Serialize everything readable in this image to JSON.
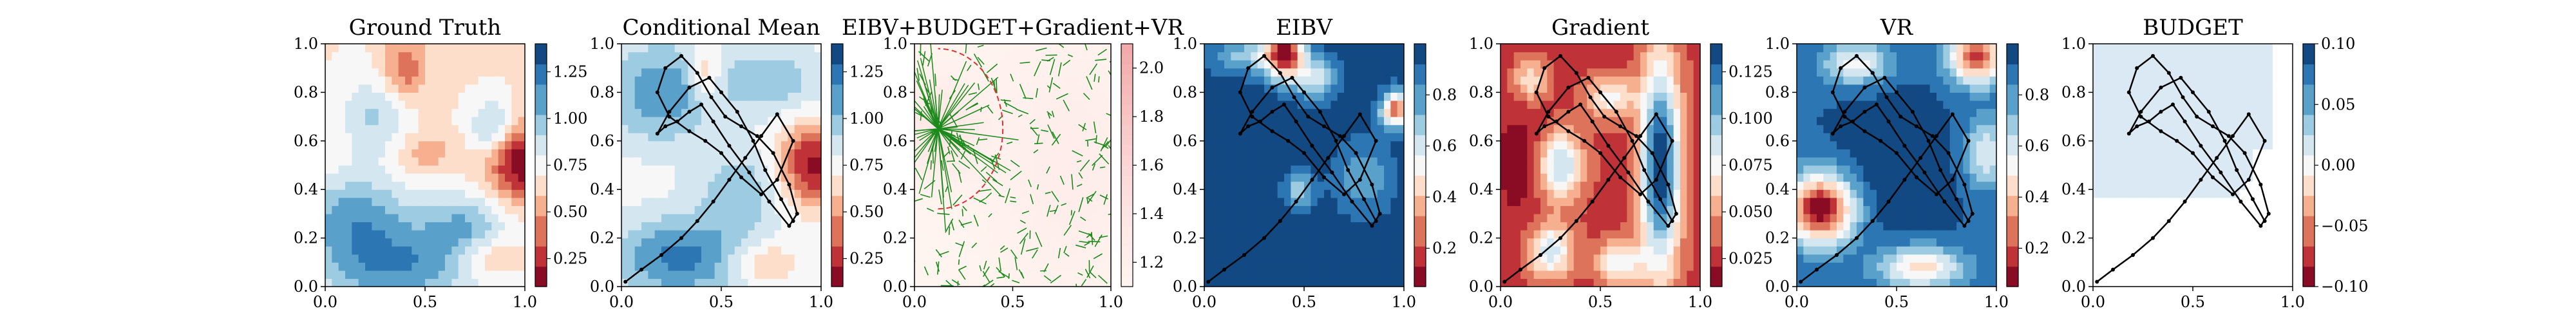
{
  "chart_data": [
    {
      "type": "heatmap",
      "title": "Ground Truth",
      "xlim": [
        0,
        1
      ],
      "ylim": [
        0,
        1
      ],
      "xticks": [
        "0.0",
        "0.5",
        "1.0"
      ],
      "yticks": [
        "0.0",
        "0.2",
        "0.4",
        "0.6",
        "0.8",
        "1.0"
      ],
      "colormap": "RdBu",
      "colorbar": {
        "range": [
          0.1,
          1.4
        ],
        "ticks": [
          "0.25",
          "0.50",
          "0.75",
          "1.00",
          "1.25"
        ]
      },
      "has_path": false
    },
    {
      "type": "heatmap",
      "title": "Conditional Mean",
      "xlim": [
        0,
        1
      ],
      "ylim": [
        0,
        1
      ],
      "xticks": [
        "0.0",
        "0.5",
        "1.0"
      ],
      "yticks": [
        "0.0",
        "0.2",
        "0.4",
        "0.6",
        "0.8",
        "1.0"
      ],
      "colormap": "RdBu",
      "colorbar": {
        "range": [
          0.1,
          1.4
        ],
        "ticks": [
          "0.25",
          "0.50",
          "0.75",
          "1.00",
          "1.25"
        ]
      },
      "has_path": true
    },
    {
      "type": "heatmap",
      "title": "EIBV+BUDGET+Gradient+VR",
      "xlim": [
        0,
        1
      ],
      "ylim": [
        0,
        1
      ],
      "xticks": [
        "0.0",
        "0.5",
        "1.0"
      ],
      "yticks": [
        "0.0",
        "0.2",
        "0.4",
        "0.6",
        "0.8",
        "1.0"
      ],
      "colormap": "Reds",
      "colorbar": {
        "range": [
          1.1,
          2.1
        ],
        "ticks": [
          "1.2",
          "1.4",
          "1.6",
          "1.8",
          "2.0"
        ]
      },
      "has_path": false
    },
    {
      "type": "heatmap",
      "title": "EIBV",
      "xlim": [
        0,
        1
      ],
      "ylim": [
        0,
        1
      ],
      "xticks": [
        "0.0",
        "0.5",
        "1.0"
      ],
      "yticks": [
        "0.0",
        "0.2",
        "0.4",
        "0.6",
        "0.8",
        "1.0"
      ],
      "colormap": "RdBu",
      "colorbar": {
        "range": [
          0.05,
          1.0
        ],
        "ticks": [
          "0.2",
          "0.4",
          "0.6",
          "0.8"
        ]
      },
      "has_path": true
    },
    {
      "type": "heatmap",
      "title": "Gradient",
      "xlim": [
        0,
        1
      ],
      "ylim": [
        0,
        1
      ],
      "xticks": [
        "0.0",
        "0.5",
        "1.0"
      ],
      "yticks": [
        "0.0",
        "0.2",
        "0.4",
        "0.6",
        "0.8",
        "1.0"
      ],
      "colormap": "RdBu",
      "colorbar": {
        "range": [
          0.01,
          0.14
        ],
        "ticks": [
          "0.025",
          "0.050",
          "0.075",
          "0.100",
          "0.125"
        ]
      },
      "has_path": true
    },
    {
      "type": "heatmap",
      "title": "VR",
      "xlim": [
        0,
        1
      ],
      "ylim": [
        0,
        1
      ],
      "xticks": [
        "0.0",
        "0.5",
        "1.0"
      ],
      "yticks": [
        "0.0",
        "0.2",
        "0.4",
        "0.6",
        "0.8",
        "1.0"
      ],
      "colormap": "RdBu",
      "colorbar": {
        "range": [
          0.05,
          1.0
        ],
        "ticks": [
          "0.2",
          "0.4",
          "0.6",
          "0.8"
        ]
      },
      "has_path": true
    },
    {
      "type": "heatmap",
      "title": "BUDGET",
      "xlim": [
        0,
        1
      ],
      "ylim": [
        0,
        1
      ],
      "xticks": [
        "0.0",
        "0.5",
        "1.0"
      ],
      "yticks": [
        "0.0",
        "0.2",
        "0.4",
        "0.6",
        "0.8",
        "1.0"
      ],
      "colormap": "RdBu",
      "colorbar": {
        "range": [
          -0.1,
          0.1
        ],
        "ticks": [
          "−0.10",
          "−0.05",
          "0.00",
          "0.05",
          "0.10"
        ]
      },
      "has_path": true
    }
  ],
  "path": {
    "x": [
      0.02,
      0.1,
      0.2,
      0.3,
      0.38,
      0.46,
      0.54,
      0.62,
      0.7,
      0.78,
      0.86,
      0.78,
      0.7,
      0.6,
      0.5,
      0.42,
      0.34,
      0.24,
      0.18,
      0.22,
      0.3,
      0.38,
      0.45,
      0.52,
      0.6,
      0.68,
      0.76,
      0.84,
      0.88,
      0.84,
      0.74,
      0.64,
      0.54,
      0.46,
      0.4,
      0.34,
      0.28,
      0.22,
      0.18,
      0.24,
      0.34,
      0.44,
      0.5,
      0.58,
      0.66,
      0.72,
      0.8,
      0.86
    ],
    "y": [
      0.02,
      0.07,
      0.13,
      0.2,
      0.27,
      0.35,
      0.44,
      0.53,
      0.62,
      0.71,
      0.6,
      0.44,
      0.38,
      0.45,
      0.55,
      0.6,
      0.64,
      0.7,
      0.8,
      0.9,
      0.95,
      0.88,
      0.78,
      0.7,
      0.66,
      0.62,
      0.55,
      0.42,
      0.3,
      0.25,
      0.35,
      0.47,
      0.58,
      0.68,
      0.75,
      0.72,
      0.68,
      0.66,
      0.63,
      0.72,
      0.82,
      0.86,
      0.8,
      0.72,
      0.6,
      0.48,
      0.36,
      0.27
    ]
  },
  "colors": {
    "rdbu": [
      "#67001f",
      "#b2182b",
      "#d6604d",
      "#f4a582",
      "#fddbc7",
      "#f7f7f7",
      "#d1e5f0",
      "#92c5de",
      "#4393c3",
      "#2166ac",
      "#053061"
    ],
    "reds": [
      "#fff5f0",
      "#fde3e3",
      "#f9c8c8",
      "#f2a8a8"
    ],
    "path": "#000000",
    "tree": "#1b8a1b",
    "circle": "#e03030"
  }
}
